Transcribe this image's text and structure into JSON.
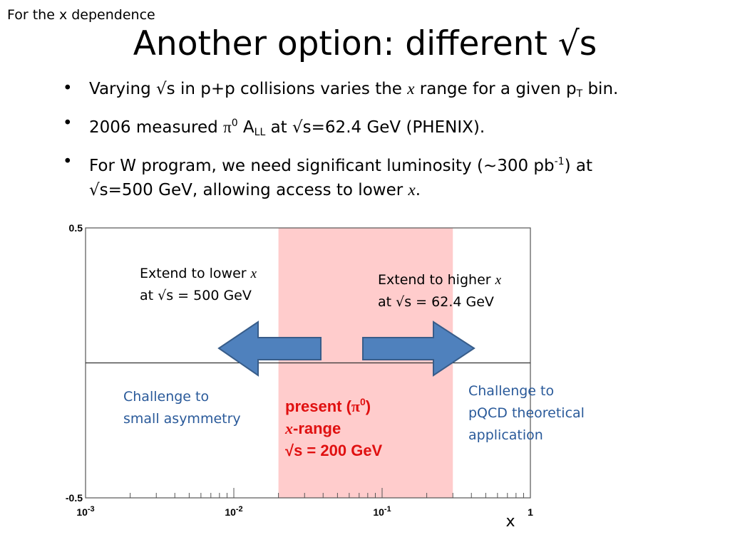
{
  "slide": {
    "corner_note": "For the x dependence",
    "title": "Another option: different √s",
    "bullets": [
      {
        "pre": "Varying √s in p+p collisions varies the ",
        "x": "x",
        "mid": " range for a given p",
        "sub": "T",
        "post": " bin."
      },
      {
        "pre": "2006 measured ",
        "pi": "π",
        "sup": "0",
        "mid": " A",
        "sub": "LL",
        "post": " at √s=62.4 GeV (PHENIX)."
      },
      {
        "pre": "For W program, we need significant luminosity (~300 pb",
        "sup": "-1",
        "mid": ") at",
        "line2": "√s=500 GeV, allowing access to lower ",
        "x": "x",
        "post": "."
      }
    ]
  },
  "annotations": {
    "extend_lower": {
      "line1": "Extend to lower ",
      "x": "x",
      "line2": "at √s = 500 GeV"
    },
    "extend_higher": {
      "line1": "Extend to higher ",
      "x": "x",
      "line2": "at √s = 62.4 GeV"
    },
    "challenge_small": {
      "line1": "Challenge to",
      "line2": "small asymmetry"
    },
    "challenge_pqcd": {
      "line1": "Challenge to",
      "line2": "pQCD theoretical",
      "line3": "application"
    },
    "present": {
      "line1a": "present (",
      "pi": "π",
      "sup": "0",
      "line1b": ")",
      "x": "x",
      "line2": "-range",
      "line3": "√s = 200 GeV"
    }
  },
  "chart_data": {
    "type": "other",
    "x_scale": "log",
    "xlim": [
      0.001,
      1
    ],
    "ylim": [
      -0.5,
      0.5
    ],
    "x_tick_labels": [
      {
        "base": "10",
        "exp": "-3",
        "value": 0.001
      },
      {
        "base": "10",
        "exp": "-2",
        "value": 0.01
      },
      {
        "base": "10",
        "exp": "-1",
        "value": 0.1
      },
      {
        "base": "1",
        "exp": "",
        "value": 1
      }
    ],
    "y_tick_labels": [
      {
        "label": "0.5",
        "value": 0.5
      },
      {
        "label": "-0.5",
        "value": -0.5
      }
    ],
    "xlabel": "x",
    "zero_line_y": 0,
    "present_x_range": [
      0.02,
      0.3
    ],
    "colors": {
      "band": "#ffcccc",
      "arrow_fill": "#4f81bd",
      "arrow_stroke": "#385d8a",
      "red_text": "#e01010",
      "blue_text": "#2a5a9a"
    }
  }
}
